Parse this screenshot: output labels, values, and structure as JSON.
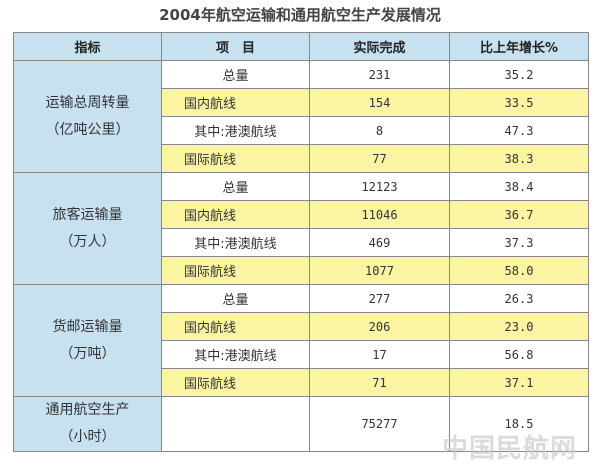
{
  "title": "2004年航空运输和通用航空生产发展情况",
  "headers": [
    "指标",
    "项　目",
    "实际完成",
    "比上年增长%"
  ],
  "groups": [
    {
      "category": [
        "运输总周转量",
        "（亿吨公里）"
      ],
      "rows": [
        {
          "item": "总量",
          "value": "231",
          "growth": "35.2"
        },
        {
          "item": "国内航线",
          "value": "154",
          "growth": "33.5"
        },
        {
          "item": "其中:港澳航线",
          "value": "8",
          "growth": "47.3"
        },
        {
          "item": "国际航线",
          "value": "77",
          "growth": "38.3"
        }
      ]
    },
    {
      "category": [
        "旅客运输量",
        "（万人）"
      ],
      "rows": [
        {
          "item": "总量",
          "value": "12123",
          "growth": "38.4"
        },
        {
          "item": "国内航线",
          "value": "11046",
          "growth": "36.7"
        },
        {
          "item": "其中:港澳航线",
          "value": "469",
          "growth": "37.3"
        },
        {
          "item": "国际航线",
          "value": "1077",
          "growth": "58.0"
        }
      ]
    },
    {
      "category": [
        "货邮运输量",
        "（万吨）"
      ],
      "rows": [
        {
          "item": "总量",
          "value": "277",
          "growth": "26.3"
        },
        {
          "item": "国内航线",
          "value": "206",
          "growth": "23.0"
        },
        {
          "item": "其中:港澳航线",
          "value": "17",
          "growth": "56.8"
        },
        {
          "item": "国际航线",
          "value": "71",
          "growth": "37.1"
        }
      ]
    }
  ],
  "general_aviation": {
    "category": [
      "通用航空生产",
      "（小时）"
    ],
    "item": "",
    "value": "75277",
    "growth": "18.5"
  },
  "watermark": "中国民航网",
  "colors": {
    "header_bg": "#c7e1f1",
    "highlight_row": "#fbf4a3",
    "border": "#888888"
  }
}
